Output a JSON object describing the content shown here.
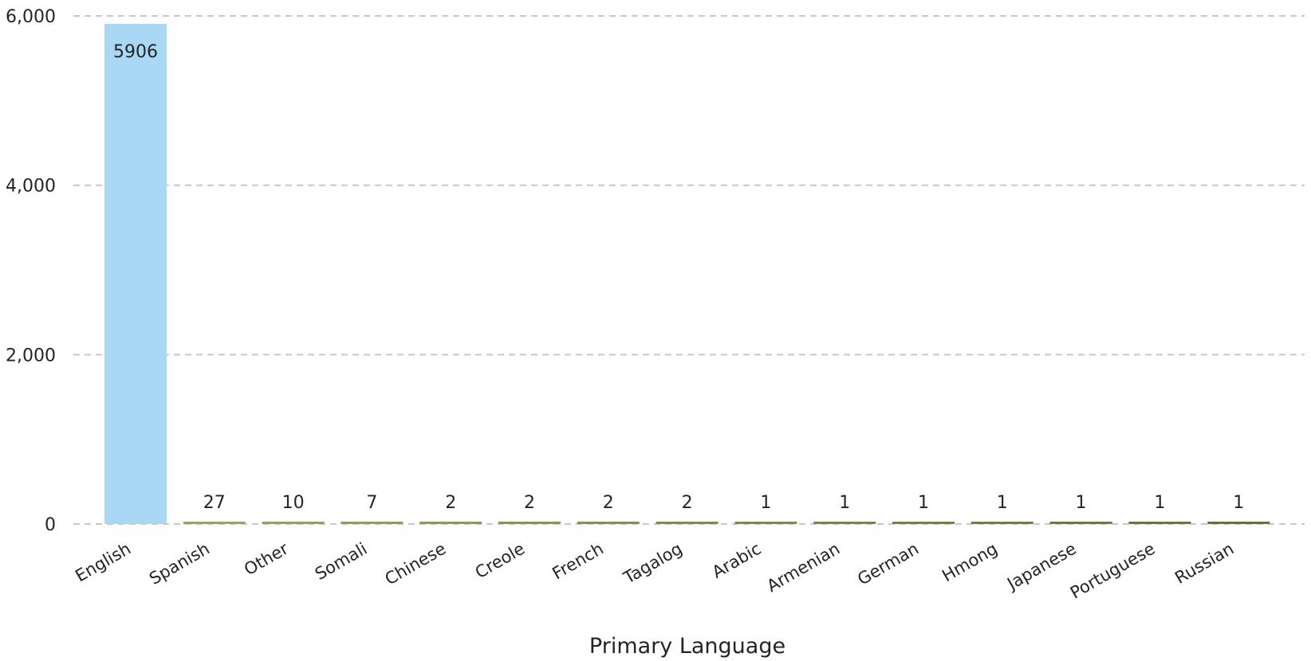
{
  "chart_data": {
    "type": "bar",
    "title": "",
    "xlabel": "Primary Language",
    "ylabel": "",
    "ylim": [
      0,
      6000
    ],
    "yticks": [
      0,
      2000,
      4000,
      6000
    ],
    "ytick_labels": [
      "0",
      "2,000",
      "4,000",
      "6,000"
    ],
    "grid": true,
    "categories": [
      "English",
      "Spanish",
      "Other",
      "Somali",
      "Chinese",
      "Creole",
      "French",
      "Tagalog",
      "Arabic",
      "Armenian",
      "German",
      "Hmong",
      "Japanese",
      "Portuguese",
      "Russian"
    ],
    "values": [
      5906,
      27,
      10,
      7,
      2,
      2,
      2,
      2,
      1,
      1,
      1,
      1,
      1,
      1,
      1
    ],
    "data_labels": [
      "5906",
      "27",
      "10",
      "7",
      "2",
      "2",
      "2",
      "2",
      "1",
      "1",
      "1",
      "1",
      "1",
      "1",
      "1"
    ],
    "colors": {
      "highlight": "#a9d8f5",
      "gradient_start": "#93ad45",
      "gradient_end": "#5b7a2f",
      "grid": "#c8c8c8",
      "text": "#252423"
    }
  }
}
